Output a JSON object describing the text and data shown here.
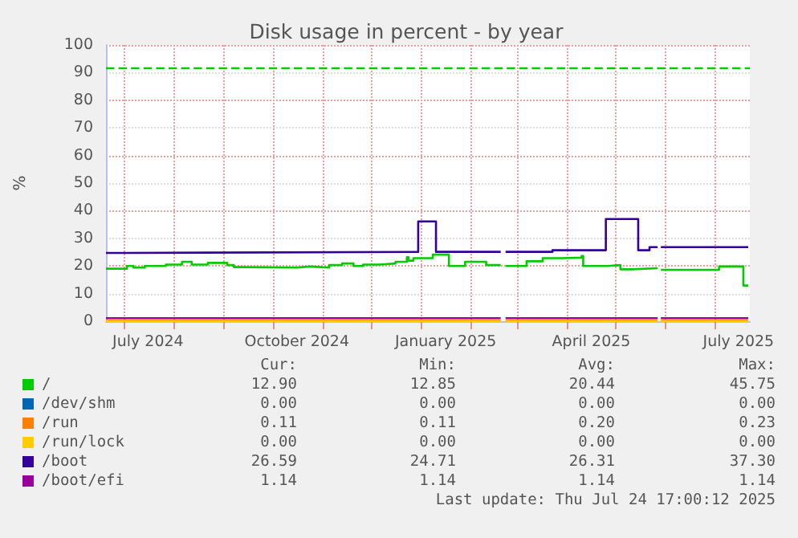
{
  "chart_data": {
    "type": "step",
    "title": "Disk usage in percent - by year",
    "ylabel": "%",
    "xlim": [
      "2024-06-20",
      "2025-07-23"
    ],
    "xticks": [
      {
        "value": "2024-07-01",
        "label": null
      },
      {
        "value": "2024-07-16",
        "label": "July 2024"
      },
      {
        "value": "2024-08-01",
        "label": null
      },
      {
        "value": "2024-09-01",
        "label": null
      },
      {
        "value": "2024-10-01",
        "label": null
      },
      {
        "value": "2024-10-16",
        "label": "October 2024"
      },
      {
        "value": "2024-11-01",
        "label": null
      },
      {
        "value": "2024-12-01",
        "label": null
      },
      {
        "value": "2025-01-01",
        "label": null
      },
      {
        "value": "2025-01-16",
        "label": "January 2025"
      },
      {
        "value": "2025-02-01",
        "label": null
      },
      {
        "value": "2025-03-01",
        "label": null
      },
      {
        "value": "2025-04-01",
        "label": null
      },
      {
        "value": "2025-04-16",
        "label": "April 2025"
      },
      {
        "value": "2025-05-01",
        "label": null
      },
      {
        "value": "2025-06-01",
        "label": null
      },
      {
        "value": "2025-07-01",
        "label": null
      },
      {
        "value": "2025-07-16",
        "label": "July 2025"
      }
    ],
    "ylim": [
      0,
      100
    ],
    "yticks": [
      0,
      10,
      20,
      30,
      40,
      50,
      60,
      70,
      80,
      90,
      100
    ],
    "grid": true,
    "legend": "bottom",
    "marker": "none",
    "line_style": "solid",
    "ref_lines": [
      {
        "axis": "y",
        "value": 92,
        "label": null,
        "color": "#00cc00",
        "line_style": "dashed"
      }
    ],
    "series": [
      {
        "name": "/",
        "color": "#00cc00",
        "x": [
          "2024-06-20",
          "2024-07-03",
          "2024-07-07",
          "2024-07-14",
          "2024-07-27",
          "2024-08-06",
          "2024-08-12",
          "2024-08-22",
          "2024-09-03",
          "2024-09-07",
          "2024-09-12",
          "2024-10-16",
          "2024-10-24",
          "2024-11-05",
          "2024-11-13",
          "2024-11-20",
          "2024-11-26",
          "2024-12-06",
          "2024-12-16",
          "2024-12-23",
          "2024-12-24",
          "2024-12-27",
          "2025-01-08",
          "2025-01-18",
          "2025-01-28",
          "2025-02-10",
          "2025-02-19",
          "2025-02-22",
          "2025-03-07",
          "2025-03-17",
          "2025-03-29",
          "2025-04-10",
          "2025-04-11",
          "2025-04-26",
          "2025-05-04",
          "2025-05-11",
          "2025-05-27",
          "2025-05-29",
          "2025-07-04",
          "2025-07-19",
          "2025-07-22"
        ],
        "values": [
          19.0,
          20.0,
          19.4,
          20.0,
          20.5,
          21.5,
          20.5,
          21.1,
          20.3,
          19.6,
          19.4,
          19.8,
          19.4,
          20.3,
          20.9,
          20.0,
          20.5,
          20.9,
          21.5,
          23.2,
          21.9,
          22.8,
          24.1,
          20.0,
          21.5,
          20.3,
          null,
          20.0,
          21.7,
          22.8,
          23.0,
          23.6,
          20.0,
          20.3,
          18.8,
          19.2,
          null,
          18.6,
          19.8,
          12.9,
          12.9
        ]
      },
      {
        "name": "/dev/shm",
        "color": "#0066b3"
      },
      {
        "name": "/run",
        "color": "#ff8000",
        "x": [
          "2024-06-20",
          "2025-02-19",
          "2025-02-22",
          "2025-05-27",
          "2025-05-29",
          "2025-07-22"
        ],
        "values": [
          0.2,
          null,
          0.2,
          null,
          0.2,
          0.1
        ]
      },
      {
        "name": "/run/lock",
        "color": "#ffcc00",
        "x": [
          "2024-06-20",
          "2025-02-19",
          "2025-02-22",
          "2025-05-27",
          "2025-05-29",
          "2025-07-22"
        ],
        "values": [
          0,
          null,
          0,
          null,
          0,
          0
        ]
      },
      {
        "name": "/boot",
        "color": "#330099",
        "x": [
          "2024-06-20",
          "2024-07-02",
          "2024-12-30",
          "2025-01-10",
          "2025-02-19",
          "2025-02-22",
          "2025-03-23",
          "2025-04-25",
          "2025-05-15",
          "2025-05-22",
          "2025-05-27",
          "2025-05-29",
          "2025-07-22"
        ],
        "values": [
          24.7,
          25.1,
          36.1,
          25.1,
          null,
          25.1,
          25.7,
          37.0,
          25.7,
          26.8,
          null,
          26.8,
          26.6
        ]
      },
      {
        "name": "/boot/efi",
        "color": "#990099",
        "x": [
          "2024-06-20",
          "2025-02-19",
          "2025-02-22",
          "2025-05-27",
          "2025-05-29",
          "2025-07-22"
        ],
        "values": [
          1.1,
          null,
          1.1,
          null,
          1.1,
          1.1
        ]
      }
    ],
    "annotations": [
      "Cur:",
      "Min:",
      "Avg:",
      "Max:",
      "12.90",
      "12.85",
      "20.44",
      "45.75",
      "0.00",
      "0.00",
      "0.00",
      "0.00",
      "0.11",
      "0.11",
      "0.20",
      "0.23",
      "0.00",
      "0.00",
      "0.00",
      "0.00",
      "26.59",
      "24.71",
      "26.31",
      "37.30",
      "1.14",
      "1.14",
      "1.14",
      "1.14",
      "Last update: Thu Jul 24 17:00:12 2025"
    ]
  }
}
